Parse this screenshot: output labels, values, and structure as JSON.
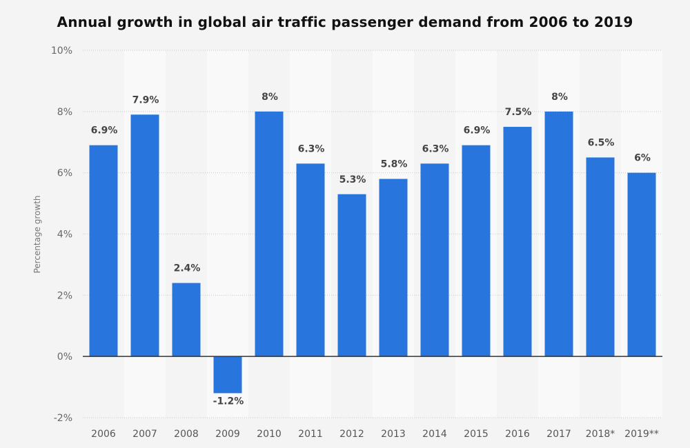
{
  "chart_data": {
    "type": "bar",
    "title": "Annual growth in global air traffic passenger demand from 2006 to 2019",
    "xlabel": "",
    "ylabel": "Percentage growth",
    "categories": [
      "2006",
      "2007",
      "2008",
      "2009",
      "2010",
      "2011",
      "2012",
      "2013",
      "2014",
      "2015",
      "2016",
      "2017",
      "2018*",
      "2019**"
    ],
    "values": [
      6.9,
      7.9,
      2.4,
      -1.2,
      8.0,
      6.3,
      5.3,
      5.8,
      6.3,
      6.9,
      7.5,
      8.0,
      6.5,
      6.0
    ],
    "data_labels": [
      "6.9%",
      "7.9%",
      "2.4%",
      "-1.2%",
      "8%",
      "6.3%",
      "5.3%",
      "5.8%",
      "6.3%",
      "6.9%",
      "7.5%",
      "8%",
      "6.5%",
      "6%"
    ],
    "ylim": [
      -2,
      10
    ],
    "yticks": [
      -2,
      0,
      2,
      4,
      6,
      8,
      10
    ],
    "ytick_labels": [
      "-2%",
      "0%",
      "2%",
      "4%",
      "6%",
      "8%",
      "10%"
    ],
    "grid": true,
    "legend": "none",
    "bar_color": "#2876dd"
  }
}
